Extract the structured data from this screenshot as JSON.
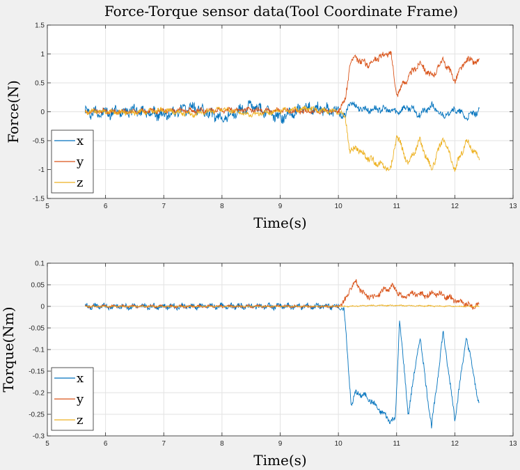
{
  "figure": {
    "colors": {
      "x": "#0072BD",
      "y": "#D95319",
      "z": "#EDB120",
      "grid": "#e2e2e2",
      "axes": "#262626",
      "background": "#f0f0f0",
      "plot_background": "#ffffff"
    }
  },
  "chart_data": [
    {
      "type": "line",
      "title": "Force-Torque sensor data(Tool Coordinate Frame)",
      "xlabel": "Time(s)",
      "ylabel": "Force(N)",
      "xlim": [
        5,
        13
      ],
      "ylim": [
        -1.5,
        1.5
      ],
      "xticks": [
        5,
        6,
        7,
        8,
        9,
        10,
        11,
        12,
        13
      ],
      "xtick_labels": [
        "5",
        "6",
        "7",
        "8",
        "9",
        "10",
        "11",
        "12",
        "13"
      ],
      "yticks": [
        -1.5,
        -1,
        -0.5,
        0,
        0.5,
        1,
        1.5
      ],
      "ytick_labels": [
        "-1.5",
        "-1",
        "-0.5",
        "0",
        "0.5",
        "1",
        "1.5"
      ],
      "grid": true,
      "legend": {
        "position": "bottom-left",
        "entries": [
          "x",
          "y",
          "z"
        ]
      },
      "series": [
        {
          "name": "x",
          "color": "#0072BD",
          "x": [
            5.65,
            6.0,
            6.5,
            7.0,
            7.5,
            8.0,
            8.5,
            9.0,
            9.5,
            10.0,
            10.12,
            10.2,
            10.3,
            10.5,
            10.7,
            10.9,
            11.0,
            11.2,
            11.4,
            11.6,
            11.8,
            12.0,
            12.2,
            12.42
          ],
          "y": [
            0.0,
            -0.02,
            0.03,
            -0.06,
            0.08,
            -0.12,
            0.1,
            -0.1,
            0.08,
            0.0,
            -0.1,
            0.2,
            0.08,
            0.03,
            0.05,
            0.02,
            0.0,
            0.08,
            -0.05,
            0.1,
            -0.08,
            0.05,
            -0.1,
            0.02
          ]
        },
        {
          "name": "y",
          "color": "#D95319",
          "x": [
            5.65,
            6.0,
            6.5,
            7.0,
            7.5,
            8.0,
            8.5,
            9.0,
            9.5,
            10.0,
            10.12,
            10.2,
            10.3,
            10.5,
            10.7,
            10.9,
            11.0,
            11.2,
            11.4,
            11.6,
            11.8,
            12.0,
            12.2,
            12.42
          ],
          "y": [
            0.0,
            0.01,
            0.0,
            0.02,
            0.02,
            0.03,
            0.03,
            0.02,
            0.0,
            0.02,
            0.2,
            0.85,
            0.92,
            0.82,
            0.95,
            1.02,
            0.3,
            0.6,
            0.85,
            0.6,
            0.9,
            0.55,
            0.9,
            0.85
          ]
        },
        {
          "name": "z",
          "color": "#EDB120",
          "x": [
            5.65,
            6.0,
            6.5,
            7.0,
            7.5,
            8.0,
            8.5,
            9.0,
            9.5,
            10.0,
            10.12,
            10.2,
            10.3,
            10.5,
            10.7,
            10.9,
            11.0,
            11.2,
            11.4,
            11.6,
            11.8,
            12.0,
            12.2,
            12.42
          ],
          "y": [
            0.0,
            0.0,
            -0.02,
            0.03,
            -0.05,
            0.05,
            -0.05,
            0.02,
            0.05,
            0.0,
            -0.1,
            -0.7,
            -0.62,
            -0.8,
            -0.9,
            -1.0,
            -0.4,
            -0.9,
            -0.5,
            -1.0,
            -0.45,
            -1.0,
            -0.5,
            -0.82
          ]
        }
      ]
    },
    {
      "type": "line",
      "title": "",
      "xlabel": "Time(s)",
      "ylabel": "Torque(Nm)",
      "xlim": [
        5,
        13
      ],
      "ylim": [
        -0.3,
        0.1
      ],
      "xticks": [
        5,
        6,
        7,
        8,
        9,
        10,
        11,
        12,
        13
      ],
      "xtick_labels": [
        "5",
        "6",
        "7",
        "8",
        "9",
        "10",
        "11",
        "12",
        "13"
      ],
      "yticks": [
        -0.3,
        -0.25,
        -0.2,
        -0.15,
        -0.1,
        -0.05,
        0,
        0.05,
        0.1
      ],
      "ytick_labels": [
        "-0.3",
        "-0.25",
        "-0.2",
        "-0.15",
        "-0.1",
        "-0.05",
        "0",
        "0.05",
        "0.1"
      ],
      "grid": true,
      "legend": {
        "position": "bottom-left",
        "entries": [
          "x",
          "y",
          "z"
        ]
      },
      "series": [
        {
          "name": "x",
          "color": "#0072BD",
          "x": [
            5.65,
            6.0,
            7.0,
            8.0,
            9.0,
            10.0,
            10.1,
            10.15,
            10.22,
            10.3,
            10.5,
            10.7,
            10.9,
            10.98,
            11.05,
            11.2,
            11.4,
            11.6,
            11.8,
            12.0,
            12.2,
            12.42
          ],
          "y": [
            0.0,
            0.0,
            0.0,
            0.0,
            0.0,
            0.0,
            -0.01,
            -0.1,
            -0.23,
            -0.2,
            -0.21,
            -0.24,
            -0.265,
            -0.26,
            -0.03,
            -0.25,
            -0.07,
            -0.28,
            -0.06,
            -0.26,
            -0.07,
            -0.23
          ]
        },
        {
          "name": "y",
          "color": "#D95319",
          "x": [
            5.65,
            6.0,
            7.0,
            8.0,
            9.0,
            10.0,
            10.1,
            10.2,
            10.3,
            10.4,
            10.6,
            10.8,
            10.95,
            11.1,
            11.3,
            11.5,
            11.7,
            11.9,
            12.1,
            12.3,
            12.42
          ],
          "y": [
            0.0,
            0.0,
            0.0,
            0.0,
            0.0,
            0.0,
            0.01,
            0.04,
            0.06,
            0.03,
            0.02,
            0.04,
            0.045,
            0.02,
            0.03,
            0.025,
            0.03,
            0.02,
            0.01,
            0.0,
            0.005
          ]
        },
        {
          "name": "z",
          "color": "#EDB120",
          "x": [
            5.65,
            6.0,
            7.0,
            8.0,
            9.0,
            10.0,
            10.2,
            10.5,
            11.0,
            11.5,
            12.0,
            12.42
          ],
          "y": [
            0.0,
            0.0,
            0.0,
            0.0,
            0.0,
            0.0,
            0.0,
            0.002,
            0.002,
            0.001,
            0.0,
            0.0
          ]
        }
      ]
    }
  ]
}
